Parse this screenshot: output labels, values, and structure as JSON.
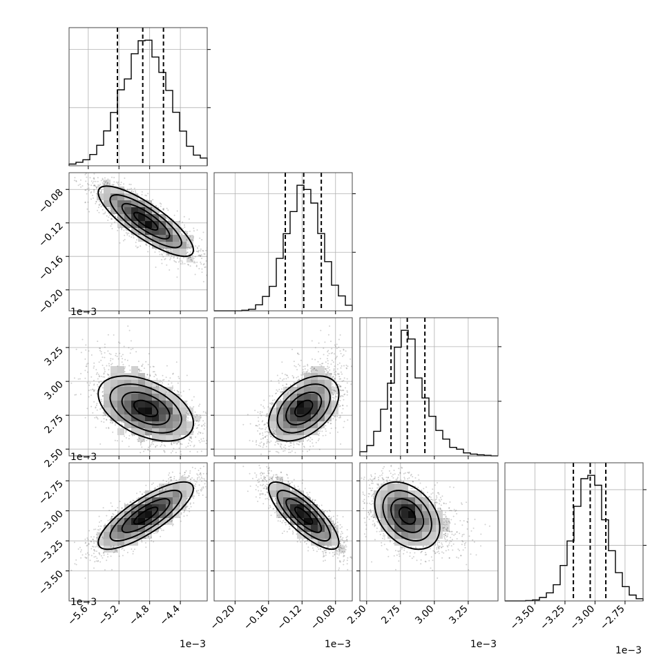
{
  "chart_data": {
    "type": "corner",
    "title": "",
    "parameters": [
      {
        "range": [
          -5.85,
          -4.05
        ],
        "mean": -4.85,
        "sd": 0.31,
        "quantiles": [
          -5.22,
          -4.89,
          -4.62
        ],
        "ticks": [
          -5.6,
          -5.2,
          -4.8,
          -4.4
        ],
        "tick_labels": [
          "−5.6",
          "−5.2",
          "−4.8",
          "−4.4"
        ],
        "offset_label": "1e−3"
      },
      {
        "range": [
          -0.225,
          -0.06
        ],
        "mean": -0.118,
        "sd": 0.021,
        "quantiles": [
          -0.14,
          -0.118,
          -0.097
        ],
        "ticks": [
          -0.2,
          -0.16,
          -0.12,
          -0.08
        ],
        "tick_labels": [
          "−0.20",
          "−0.16",
          "−0.12",
          "−0.08"
        ],
        "offset_label": "1e−3"
      },
      {
        "range": [
          2.45,
          3.47
        ],
        "mean": 2.8,
        "sd": 0.12,
        "quantiles": [
          2.68,
          2.8,
          2.93
        ],
        "ticks": [
          2.5,
          2.75,
          3.0,
          3.25
        ],
        "tick_labels": [
          "2.50",
          "2.75",
          "3.00",
          "3.25"
        ],
        "offset_label": "1e−3"
      },
      {
        "range": [
          -3.75,
          -2.6
        ],
        "mean": -3.04,
        "sd": 0.14,
        "quantiles": [
          -3.18,
          -3.04,
          -2.91
        ],
        "ticks": [
          -3.5,
          -3.25,
          -3.0,
          -2.75
        ],
        "tick_labels": [
          "−3.50",
          "−3.25",
          "−3.00",
          "−2.75"
        ],
        "offset_label": "1e−3"
      }
    ],
    "correlations": [
      [
        1,
        -0.82,
        -0.45,
        0.8
      ],
      [
        -0.82,
        1,
        0.45,
        -0.8
      ],
      [
        -0.45,
        0.45,
        1,
        -0.35
      ],
      [
        0.8,
        -0.8,
        -0.35,
        1
      ]
    ],
    "histogram_bins": 20,
    "contour_levels": [
      "0.5σ",
      "1σ",
      "1.5σ",
      "2σ"
    ],
    "grid": true
  }
}
